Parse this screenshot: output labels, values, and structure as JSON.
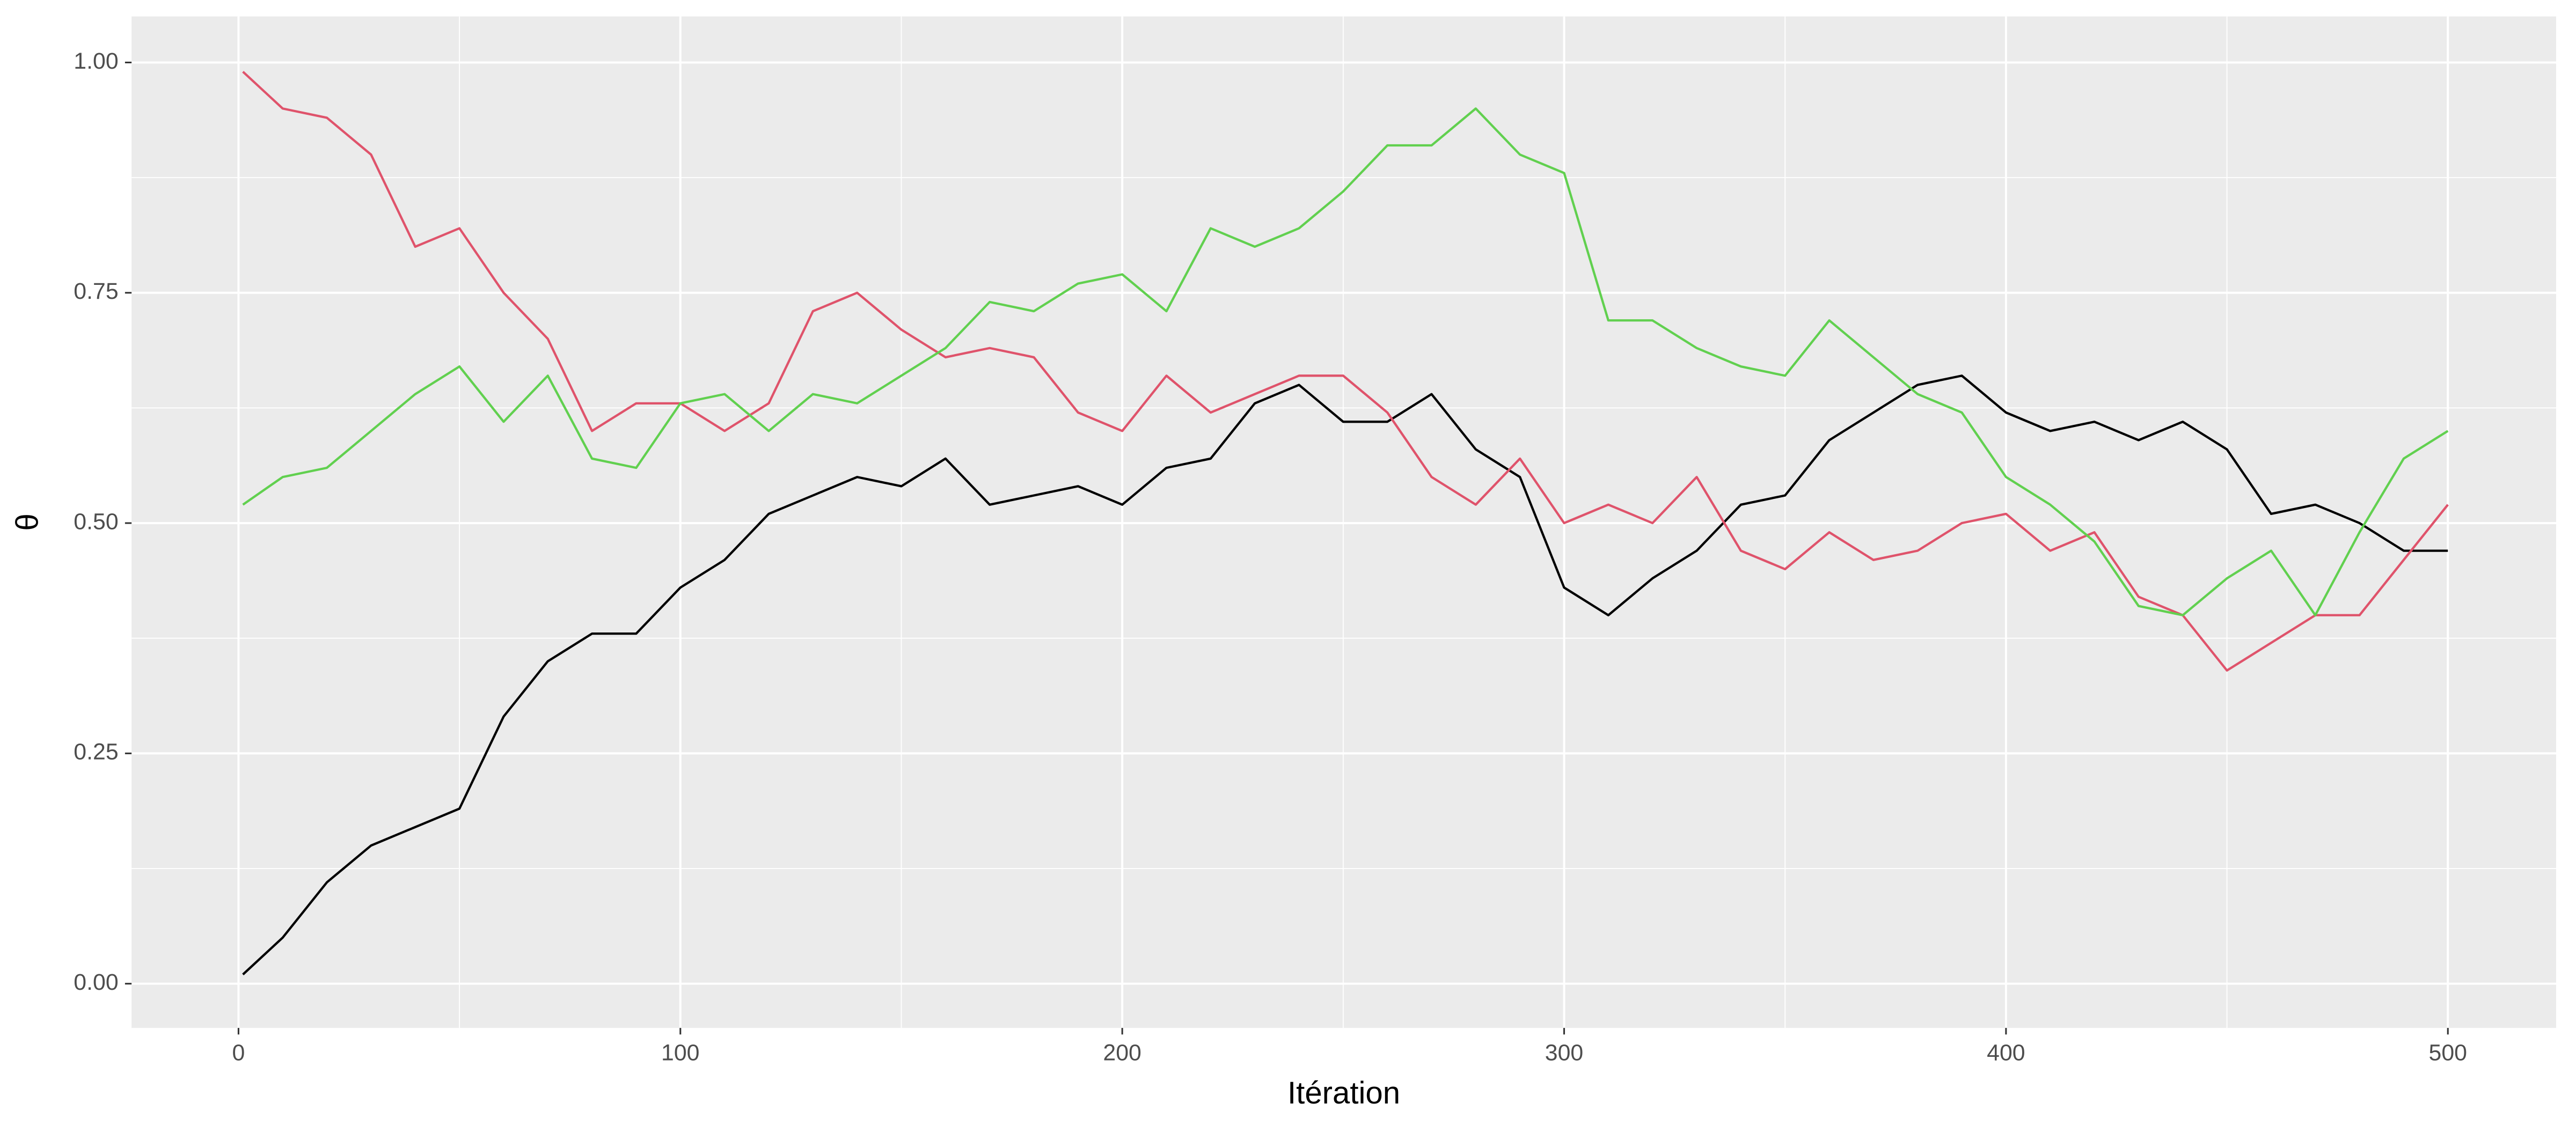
{
  "chart_data": {
    "type": "line",
    "x_label": "Itération",
    "y_label": "θ",
    "x": [
      1,
      10,
      20,
      30,
      40,
      50,
      60,
      70,
      80,
      90,
      100,
      110,
      120,
      130,
      140,
      150,
      160,
      170,
      180,
      190,
      200,
      210,
      220,
      230,
      240,
      250,
      260,
      270,
      280,
      290,
      300,
      310,
      320,
      330,
      340,
      350,
      360,
      370,
      380,
      390,
      400,
      410,
      420,
      430,
      440,
      450,
      460,
      470,
      480,
      490,
      500
    ],
    "series": [
      {
        "color": "#000000",
        "values": [
          0.01,
          0.05,
          0.11,
          0.15,
          0.17,
          0.19,
          0.29,
          0.35,
          0.38,
          0.38,
          0.43,
          0.46,
          0.51,
          0.53,
          0.55,
          0.54,
          0.57,
          0.52,
          0.53,
          0.54,
          0.52,
          0.56,
          0.57,
          0.63,
          0.65,
          0.61,
          0.61,
          0.64,
          0.58,
          0.55,
          0.43,
          0.4,
          0.44,
          0.47,
          0.52,
          0.53,
          0.59,
          0.62,
          0.65,
          0.66,
          0.62,
          0.6,
          0.61,
          0.59,
          0.61,
          0.58,
          0.51,
          0.52,
          0.5,
          0.47,
          0.47
        ]
      },
      {
        "color": "#DF536B",
        "values": [
          0.99,
          0.95,
          0.94,
          0.9,
          0.8,
          0.82,
          0.75,
          0.7,
          0.6,
          0.63,
          0.63,
          0.6,
          0.63,
          0.73,
          0.75,
          0.71,
          0.68,
          0.69,
          0.68,
          0.62,
          0.6,
          0.66,
          0.62,
          0.64,
          0.66,
          0.66,
          0.62,
          0.55,
          0.52,
          0.57,
          0.5,
          0.52,
          0.5,
          0.55,
          0.47,
          0.45,
          0.49,
          0.46,
          0.47,
          0.5,
          0.51,
          0.47,
          0.49,
          0.42,
          0.4,
          0.34,
          0.37,
          0.4,
          0.4,
          0.46,
          0.52
        ]
      },
      {
        "color": "#61D04F",
        "values": [
          0.52,
          0.55,
          0.56,
          0.6,
          0.64,
          0.67,
          0.61,
          0.66,
          0.57,
          0.56,
          0.63,
          0.64,
          0.6,
          0.64,
          0.63,
          0.66,
          0.69,
          0.74,
          0.73,
          0.76,
          0.77,
          0.73,
          0.82,
          0.8,
          0.82,
          0.86,
          0.91,
          0.91,
          0.95,
          0.9,
          0.88,
          0.72,
          0.72,
          0.69,
          0.67,
          0.66,
          0.72,
          0.68,
          0.64,
          0.62,
          0.55,
          0.52,
          0.48,
          0.41,
          0.4,
          0.44,
          0.47,
          0.4,
          0.49,
          0.57,
          0.6
        ]
      }
    ],
    "xlim": [
      -24.2,
      524.5
    ],
    "ylim": [
      -0.048,
      1.05
    ],
    "xticks": [
      0,
      100,
      200,
      300,
      400,
      500
    ],
    "yticks": [
      {
        "value": 0,
        "label": "0.00"
      },
      {
        "value": 0.25,
        "label": "0.25"
      },
      {
        "value": 0.5,
        "label": "0.50"
      },
      {
        "value": 0.75,
        "label": "0.75"
      },
      {
        "value": 1,
        "label": "1.00"
      }
    ],
    "x_minor_grid": [
      50,
      150,
      250,
      350,
      450
    ],
    "y_minor_grid": [
      0.125,
      0.375,
      0.625,
      0.875
    ],
    "grid": true,
    "panel_color": "#EBEBEB"
  }
}
